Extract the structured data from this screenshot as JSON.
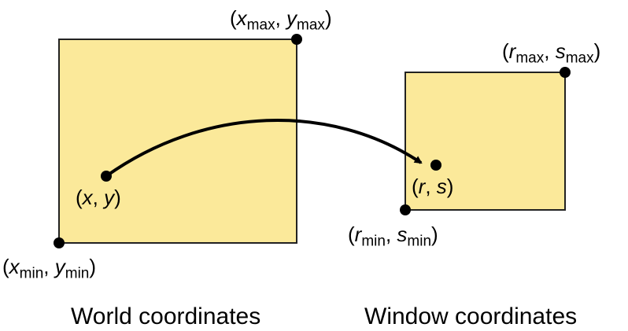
{
  "world": {
    "caption": "World coordinates",
    "corner_max": {
      "sym_x": "x",
      "sub_x": "max",
      "sep": ", ",
      "sym_y": "y",
      "sub_y": "max"
    },
    "corner_min": {
      "sym_x": "x",
      "sub_x": "min",
      "sep": ", ",
      "sym_y": "y",
      "sub_y": "min"
    },
    "point": {
      "sym_x": "x",
      "sep": ", ",
      "sym_y": "y"
    }
  },
  "window": {
    "caption": "Window coordinates",
    "corner_max": {
      "sym_x": "r",
      "sub_x": "max",
      "sep": ", ",
      "sym_y": "s",
      "sub_y": "max"
    },
    "corner_min": {
      "sym_x": "r",
      "sub_x": "min",
      "sep": ", ",
      "sym_y": "s",
      "sub_y": "min"
    },
    "point": {
      "sym_x": "r",
      "sep": ", ",
      "sym_y": "s"
    }
  },
  "colors": {
    "box_fill": "#fbe99a",
    "box_stroke": "#222222",
    "ink": "#000000"
  }
}
